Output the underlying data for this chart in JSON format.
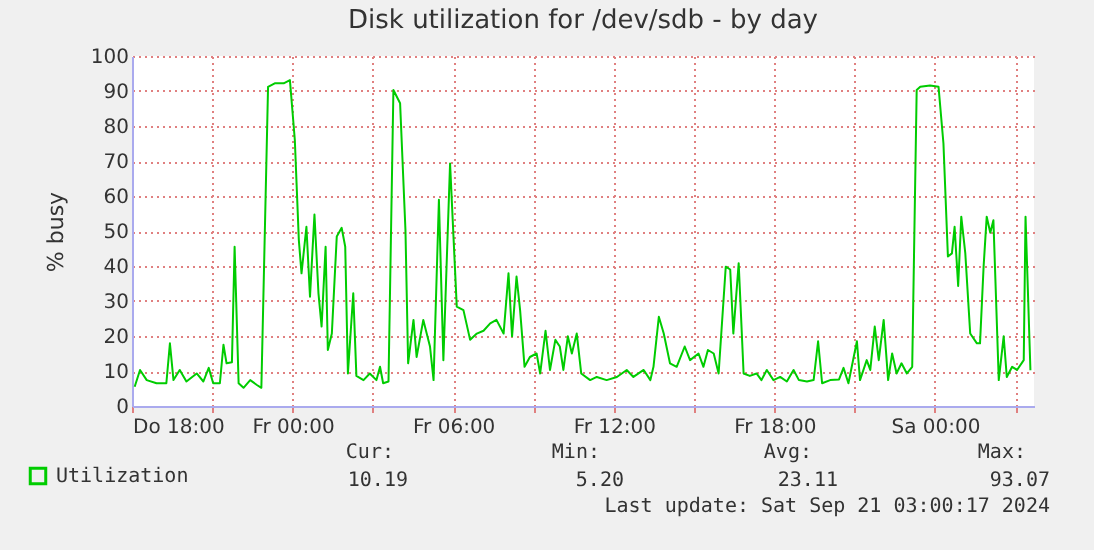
{
  "chart_data": {
    "type": "line",
    "title": "Disk utilization for /dev/sdb - by day",
    "ylabel": "% busy",
    "xlim": [
      "2024-09-19T18:00",
      "2024-09-21T03:42"
    ],
    "xticks": [
      {
        "value": "2024-09-19T18:00",
        "label": "Do 18:00"
      },
      {
        "value": "2024-09-19T21:00",
        "label": null
      },
      {
        "value": "2024-09-20T00:00",
        "label": "Fr 00:00"
      },
      {
        "value": "2024-09-20T03:00",
        "label": null
      },
      {
        "value": "2024-09-20T06:00",
        "label": "Fr 06:00"
      },
      {
        "value": "2024-09-20T09:00",
        "label": null
      },
      {
        "value": "2024-09-20T12:00",
        "label": "Fr 12:00"
      },
      {
        "value": "2024-09-20T15:00",
        "label": null
      },
      {
        "value": "2024-09-20T18:00",
        "label": "Fr 18:00"
      },
      {
        "value": "2024-09-20T21:00",
        "label": null
      },
      {
        "value": "2024-09-21T00:00",
        "label": "Sa 00:00"
      },
      {
        "value": "2024-09-21T03:00",
        "label": null
      }
    ],
    "ylim": [
      0,
      100
    ],
    "yticks": [
      0,
      10,
      20,
      30,
      40,
      50,
      60,
      70,
      80,
      90,
      100
    ],
    "grid": true,
    "legend": "bottom left",
    "line_style": "solid",
    "annotations": [
      "Cur:",
      "10.19",
      "Min:",
      "5.20",
      "Avg:",
      "23.11",
      "Max:",
      "93.07",
      "Last update: Sat Sep 21 03:00:17 2024"
    ],
    "series": [
      {
        "name": "Utilization",
        "color": "#00cc00",
        "x": [
          "2024-09-19T18:06",
          "2024-09-19T18:18",
          "2024-09-19T18:33",
          "2024-09-19T18:55",
          "2024-09-19T19:17",
          "2024-09-19T19:25",
          "2024-09-19T19:33",
          "2024-09-19T19:47",
          "2024-09-19T20:02",
          "2024-09-19T20:25",
          "2024-09-19T20:40",
          "2024-09-19T20:52",
          "2024-09-19T21:02",
          "2024-09-19T21:17",
          "2024-09-19T21:25",
          "2024-09-19T21:32",
          "2024-09-19T21:44",
          "2024-09-19T21:50",
          "2024-09-19T21:59",
          "2024-09-19T22:10",
          "2024-09-19T22:25",
          "2024-09-19T22:40",
          "2024-09-19T22:50",
          "2024-09-19T23:05",
          "2024-09-19T23:20",
          "2024-09-19T23:40",
          "2024-09-19T23:54",
          "2024-09-20T00:05",
          "2024-09-20T00:14",
          "2024-09-20T00:20",
          "2024-09-20T00:31",
          "2024-09-20T00:39",
          "2024-09-20T00:49",
          "2024-09-20T00:58",
          "2024-09-20T01:05",
          "2024-09-20T01:14",
          "2024-09-20T01:19",
          "2024-09-20T01:28",
          "2024-09-20T01:39",
          "2024-09-20T01:50",
          "2024-09-20T01:58",
          "2024-09-20T02:04",
          "2024-09-20T02:16",
          "2024-09-20T02:23",
          "2024-09-20T02:39",
          "2024-09-20T02:53",
          "2024-09-20T03:08",
          "2024-09-20T03:16",
          "2024-09-20T03:23",
          "2024-09-20T03:35",
          "2024-09-20T03:46",
          "2024-09-20T04:01",
          "2024-09-20T04:13",
          "2024-09-20T04:19",
          "2024-09-20T04:31",
          "2024-09-20T04:38",
          "2024-09-20T04:53",
          "2024-09-20T05:08",
          "2024-09-20T05:16",
          "2024-09-20T05:28",
          "2024-09-20T05:38",
          "2024-09-20T05:53",
          "2024-09-20T06:08",
          "2024-09-20T06:23",
          "2024-09-20T06:38",
          "2024-09-20T06:53",
          "2024-09-20T07:08",
          "2024-09-20T07:23",
          "2024-09-20T07:37",
          "2024-09-20T07:53",
          "2024-09-20T08:04",
          "2024-09-20T08:12",
          "2024-09-20T08:22",
          "2024-09-20T08:30",
          "2024-09-20T08:40",
          "2024-09-20T08:52",
          "2024-09-20T09:07",
          "2024-09-20T09:15",
          "2024-09-20T09:27",
          "2024-09-20T09:37",
          "2024-09-20T09:49",
          "2024-09-20T09:59",
          "2024-09-20T10:07",
          "2024-09-20T10:17",
          "2024-09-20T10:26",
          "2024-09-20T10:37",
          "2024-09-20T10:47",
          "2024-09-20T11:07",
          "2024-09-20T11:22",
          "2024-09-20T11:44",
          "2024-09-20T12:07",
          "2024-09-20T12:29",
          "2024-09-20T12:44",
          "2024-09-20T13:07",
          "2024-09-20T13:22",
          "2024-09-20T13:29",
          "2024-09-20T13:41",
          "2024-09-20T13:52",
          "2024-09-20T14:06",
          "2024-09-20T14:21",
          "2024-09-20T14:39",
          "2024-09-20T14:51",
          "2024-09-20T15:10",
          "2024-09-20T15:21",
          "2024-09-20T15:31",
          "2024-09-20T15:44",
          "2024-09-20T15:55",
          "2024-09-20T16:11",
          "2024-09-20T16:21",
          "2024-09-20T16:28",
          "2024-09-20T16:40",
          "2024-09-20T16:51",
          "2024-09-20T17:05",
          "2024-09-20T17:20",
          "2024-09-20T17:31",
          "2024-09-20T17:43",
          "2024-09-20T17:58",
          "2024-09-20T18:13",
          "2024-09-20T18:28",
          "2024-09-20T18:43",
          "2024-09-20T18:55",
          "2024-09-20T19:13",
          "2024-09-20T19:28",
          "2024-09-20T19:38",
          "2024-09-20T19:47",
          "2024-09-20T20:05",
          "2024-09-20T20:25",
          "2024-09-20T20:35",
          "2024-09-20T20:46",
          "2024-09-20T21:05",
          "2024-09-20T21:12",
          "2024-09-20T21:27",
          "2024-09-20T21:35",
          "2024-09-20T21:45",
          "2024-09-20T21:54",
          "2024-09-20T22:05",
          "2024-09-20T22:15",
          "2024-09-20T22:24",
          "2024-09-20T22:34",
          "2024-09-20T22:45",
          "2024-09-20T22:57",
          "2024-09-20T23:09",
          "2024-09-20T23:19",
          "2024-09-20T23:27",
          "2024-09-20T23:49",
          "2024-09-21T00:08",
          "2024-09-21T00:19",
          "2024-09-21T00:29",
          "2024-09-21T00:38",
          "2024-09-21T00:44",
          "2024-09-21T00:52",
          "2024-09-21T00:59",
          "2024-09-21T01:08",
          "2024-09-21T01:19",
          "2024-09-21T01:34",
          "2024-09-21T01:41",
          "2024-09-21T01:49",
          "2024-09-21T01:56",
          "2024-09-21T02:04",
          "2024-09-21T02:11",
          "2024-09-21T02:23",
          "2024-09-21T02:34",
          "2024-09-21T02:41",
          "2024-09-21T02:53",
          "2024-09-21T03:04",
          "2024-09-21T03:19",
          "2024-09-21T03:23",
          "2024-09-21T03:34"
        ],
        "values": [
          5.5,
          10.3,
          7.4,
          6.5,
          6.5,
          17.9,
          7.4,
          10.3,
          7,
          9.3,
          7,
          10.9,
          6.5,
          6.5,
          17.5,
          12.2,
          12.5,
          45.5,
          6.5,
          5.2,
          7.4,
          6,
          5.2,
          91.2,
          92.2,
          92.2,
          93.1,
          76,
          47.4,
          37.9,
          51.2,
          31.2,
          54.7,
          32.2,
          22.7,
          45.5,
          16,
          20.7,
          48.4,
          50.9,
          45.5,
          9.3,
          32.2,
          8.6,
          7.4,
          9.3,
          7.4,
          11.2,
          6.5,
          7,
          90.3,
          86.5,
          50.3,
          12.2,
          24.6,
          14,
          24.6,
          17,
          7.4,
          58.9,
          13.1,
          69.3,
          28.4,
          27.4,
          18.9,
          20.7,
          21.5,
          23.6,
          24.6,
          20.7,
          37.9,
          19.9,
          37,
          27.4,
          11.2,
          14,
          15,
          9.3,
          21.5,
          10.3,
          18.9,
          17,
          10.3,
          19.9,
          15,
          20.7,
          9.3,
          7.4,
          8.3,
          7.4,
          8.3,
          10.3,
          8.3,
          10.3,
          7.4,
          11.2,
          25.5,
          20.7,
          12.2,
          11.2,
          17,
          13.1,
          15,
          11.2,
          16,
          15,
          9.3,
          39.8,
          39,
          20.7,
          40.8,
          9.3,
          8.6,
          9.3,
          7.4,
          10.3,
          7.4,
          8.3,
          7,
          10.3,
          7.4,
          7,
          7.4,
          18.5,
          6.5,
          7.4,
          7.6,
          10.9,
          6.5,
          18.5,
          7.4,
          13.1,
          10.3,
          22.7,
          13.1,
          24.6,
          7.4,
          15,
          9.3,
          12.2,
          9.3,
          11.2,
          90.3,
          91.2,
          91.6,
          91.2,
          75,
          42.7,
          43.6,
          51.2,
          34.3,
          54.1,
          43.6,
          20.7,
          17.9,
          17.9,
          39.8,
          54.1,
          49.5,
          53.1,
          7.4,
          19.9,
          8.3,
          11.2,
          10.3,
          13.1,
          54.1,
          10.2
        ]
      }
    ]
  }
}
